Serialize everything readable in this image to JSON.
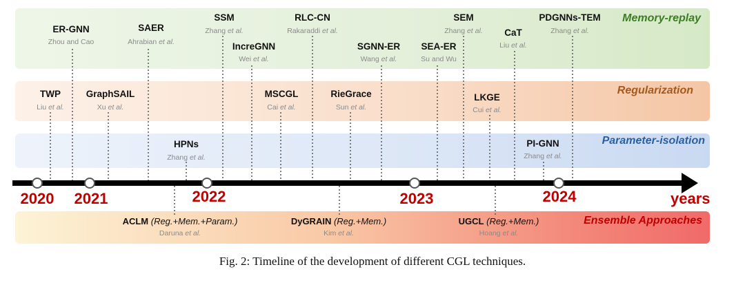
{
  "categories": {
    "memory": "Memory-replay",
    "regularization": "Regularization",
    "parameter": "Parameter-isolation",
    "ensemble": "Ensemble Approaches"
  },
  "colors": {
    "memory_text": "#3c7d22",
    "regularization_text": "#a5591c",
    "parameter_text": "#2c5f9e",
    "ensemble_text": "#c00000",
    "year_text": "#c00000",
    "axis": "#000000"
  },
  "years": [
    "2020",
    "2021",
    "2022",
    "2023",
    "2024"
  ],
  "axis_end_label": "years",
  "methods": {
    "ergnn": {
      "name": "ER-GNN",
      "author": "Zhou and Cao",
      "author_suffix": ""
    },
    "saer": {
      "name": "SAER",
      "author": "Ahrabian",
      "author_suffix": "et al."
    },
    "ssm": {
      "name": "SSM",
      "author": "Zhang",
      "author_suffix": "et al."
    },
    "incregnn": {
      "name": "IncreGNN",
      "author": "Wei",
      "author_suffix": "et al."
    },
    "rlccn": {
      "name": "RLC-CN",
      "author": "Rakaraddi",
      "author_suffix": "et al."
    },
    "sgnner": {
      "name": "SGNN-ER",
      "author": "Wang",
      "author_suffix": "et al."
    },
    "seaer": {
      "name": "SEA-ER",
      "author": "Su and Wu",
      "author_suffix": ""
    },
    "sem": {
      "name": "SEM",
      "author": "Zhang",
      "author_suffix": "et al."
    },
    "cat": {
      "name": "CaT",
      "author": "Liu",
      "author_suffix": "et al."
    },
    "pdgnns": {
      "name": "PDGNNs-TEM",
      "author": "Zhang",
      "author_suffix": "et al."
    },
    "twp": {
      "name": "TWP",
      "author": "Liu",
      "author_suffix": "et al."
    },
    "graphsail": {
      "name": "GraphSAIL",
      "author": "Xu",
      "author_suffix": "et al."
    },
    "mscgl": {
      "name": "MSCGL",
      "author": "Cai",
      "author_suffix": "et al."
    },
    "riegrace": {
      "name": "RieGrace",
      "author": "Sun",
      "author_suffix": "et al."
    },
    "lkge": {
      "name": "LKGE",
      "author": "Cui",
      "author_suffix": "et al."
    },
    "hpns": {
      "name": "HPNs",
      "author": "Zhang",
      "author_suffix": "et al."
    },
    "pignn": {
      "name": "PI-GNN",
      "author": "Zhang",
      "author_suffix": "et al."
    },
    "aclm": {
      "name": "ACLM",
      "tag": "(Reg.+Mem.+Param.)",
      "author": "Daruna",
      "author_suffix": "et al."
    },
    "dygrain": {
      "name": "DyGRAIN",
      "tag": "(Reg.+Mem.)",
      "author": "Kim",
      "author_suffix": "et al."
    },
    "ugcl": {
      "name": "UGCL",
      "tag": "(Reg.+Mem.)",
      "author": "Hoang",
      "author_suffix": "et al."
    }
  },
  "caption": "Fig. 2: Timeline of the development of different CGL techniques."
}
